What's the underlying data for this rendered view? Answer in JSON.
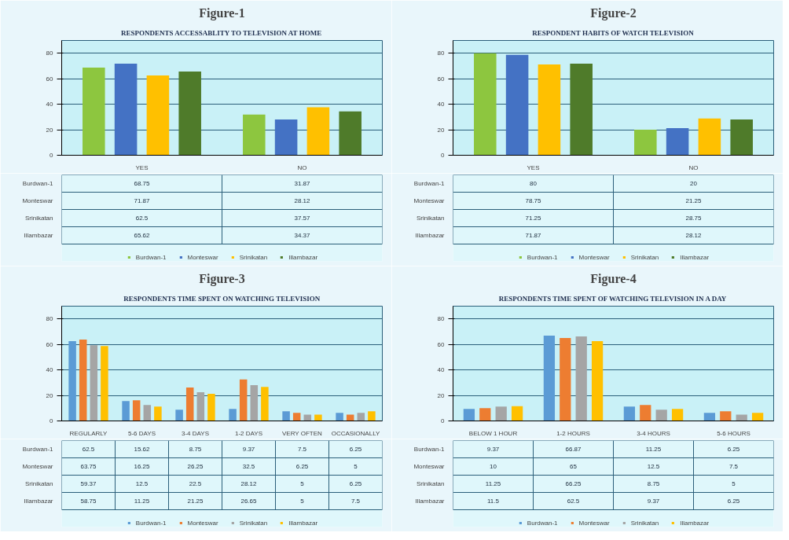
{
  "chart_data": [
    {
      "type": "bar",
      "title": "Figure-1",
      "subtitle": "RESPONDENTS ACCESSABLITY TO TELEVISION AT HOME",
      "categories": [
        "YES",
        "NO"
      ],
      "series": [
        {
          "name": "Burdwan-1",
          "color": "#8dc63f",
          "values": [
            68.75,
            31.87
          ]
        },
        {
          "name": "Monteswar",
          "color": "#4472c4",
          "values": [
            71.87,
            28.12
          ]
        },
        {
          "name": "Srinikatan",
          "color": "#ffc000",
          "values": [
            62.5,
            37.57
          ]
        },
        {
          "name": "Illambazar",
          "color": "#4f7b2a",
          "values": [
            65.62,
            34.37
          ]
        }
      ],
      "ylim": [
        0,
        90
      ],
      "yticks": [
        0,
        20,
        40,
        60,
        80
      ],
      "grid": "y",
      "legend": "bottom",
      "data_labels": true
    },
    {
      "type": "bar",
      "title": "Figure-2",
      "subtitle": "RESPONDENT HABITS OF WATCH TELEVISION",
      "categories": [
        "YES",
        "NO"
      ],
      "series": [
        {
          "name": "Burdwan-1",
          "color": "#8dc63f",
          "values": [
            80,
            20
          ]
        },
        {
          "name": "Monteswar",
          "color": "#4472c4",
          "values": [
            78.75,
            21.25
          ]
        },
        {
          "name": "Srinikatan",
          "color": "#ffc000",
          "values": [
            71.25,
            28.75
          ]
        },
        {
          "name": "Illambazar",
          "color": "#4f7b2a",
          "values": [
            71.87,
            28.12
          ]
        }
      ],
      "ylim": [
        0,
        90
      ],
      "yticks": [
        0,
        20,
        40,
        60,
        80
      ],
      "grid": "y",
      "legend": "bottom",
      "data_labels": true
    },
    {
      "type": "bar",
      "title": "Figure-3",
      "subtitle": "RESPONDENTS TIME SPENT ON WATCHING TELEVISION",
      "categories": [
        "REGULARLY",
        "5-6 DAYS",
        "3-4 DAYS",
        "1-2 DAYS",
        "VERY OFTEN",
        "OCCASIONALLY"
      ],
      "series": [
        {
          "name": "Burdwan-1",
          "color": "#5b9bd5",
          "values": [
            62.5,
            15.62,
            8.75,
            9.37,
            7.5,
            6.25
          ]
        },
        {
          "name": "Monteswar",
          "color": "#ed7d31",
          "values": [
            63.75,
            16.25,
            26.25,
            32.5,
            6.25,
            5
          ]
        },
        {
          "name": "Srinikatan",
          "color": "#a5a5a5",
          "values": [
            59.37,
            12.5,
            22.5,
            28.12,
            5,
            6.25
          ]
        },
        {
          "name": "Illambazar",
          "color": "#ffc000",
          "values": [
            58.75,
            11.25,
            21.25,
            26.65,
            5,
            7.5
          ]
        }
      ],
      "ylim": [
        0,
        90
      ],
      "yticks": [
        0,
        20,
        40,
        60,
        80
      ],
      "grid": "y",
      "legend": "bottom",
      "data_labels": true
    },
    {
      "type": "bar",
      "title": "Figure-4",
      "subtitle": "RESPONDENTS TIME SPENT OF WATCHING TELEVISION IN A DAY",
      "categories": [
        "BELOW 1 HOUR",
        "1-2 HOURS",
        "3-4 HOURS",
        "5-6 HOURS"
      ],
      "series": [
        {
          "name": "Burdwan-1",
          "color": "#5b9bd5",
          "values": [
            9.37,
            66.87,
            11.25,
            6.25
          ]
        },
        {
          "name": "Monteswar",
          "color": "#ed7d31",
          "values": [
            10,
            65,
            12.5,
            7.5
          ]
        },
        {
          "name": "Srinikatan",
          "color": "#a5a5a5",
          "values": [
            11.25,
            66.25,
            8.75,
            5
          ]
        },
        {
          "name": "Illambazar",
          "color": "#ffc000",
          "values": [
            11.5,
            62.5,
            9.37,
            6.25
          ]
        }
      ],
      "ylim": [
        0,
        90
      ],
      "yticks": [
        0,
        20,
        40,
        60,
        80
      ],
      "grid": "y",
      "legend": "bottom",
      "data_labels": true
    }
  ]
}
